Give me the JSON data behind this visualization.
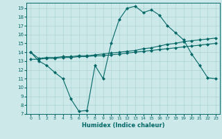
{
  "bg_color": "#cce8e8",
  "line_color": "#006666",
  "grid_color": "#aad4d4",
  "xlabel": "Humidex (Indice chaleur)",
  "xlim": [
    -0.5,
    23.5
  ],
  "ylim": [
    7,
    19.6
  ],
  "yticks": [
    7,
    8,
    9,
    10,
    11,
    12,
    13,
    14,
    15,
    16,
    17,
    18,
    19
  ],
  "xticks": [
    0,
    1,
    2,
    3,
    4,
    5,
    6,
    7,
    8,
    9,
    10,
    11,
    12,
    13,
    14,
    15,
    16,
    17,
    18,
    19,
    20,
    21,
    22,
    23
  ],
  "line1_x": [
    0,
    1,
    2,
    3,
    4,
    5,
    6,
    7,
    8,
    9,
    10,
    11,
    12,
    13,
    14,
    15,
    16,
    17,
    18,
    19,
    20,
    21,
    22,
    23
  ],
  "line1_y": [
    14.0,
    13.0,
    12.5,
    11.7,
    11.0,
    8.7,
    7.3,
    7.4,
    12.5,
    11.0,
    15.0,
    17.7,
    19.0,
    19.2,
    18.5,
    18.8,
    18.2,
    17.0,
    16.2,
    15.4,
    13.8,
    12.5,
    11.1,
    11.0
  ],
  "line2_x": [
    0,
    1,
    2,
    3,
    4,
    5,
    6,
    7,
    8,
    9,
    10,
    11,
    12,
    13,
    14,
    15,
    16,
    17,
    18,
    19,
    20,
    21,
    22,
    23
  ],
  "line2_y": [
    14.0,
    13.3,
    13.4,
    13.4,
    13.5,
    13.5,
    13.6,
    13.6,
    13.7,
    13.8,
    13.9,
    14.0,
    14.1,
    14.2,
    14.4,
    14.5,
    14.7,
    14.9,
    15.0,
    15.2,
    15.3,
    15.4,
    15.5,
    15.6
  ],
  "line3_x": [
    0,
    1,
    2,
    3,
    4,
    5,
    6,
    7,
    8,
    9,
    10,
    11,
    12,
    13,
    14,
    15,
    16,
    17,
    18,
    19,
    20,
    21,
    22,
    23
  ],
  "line3_y": [
    13.2,
    13.2,
    13.3,
    13.3,
    13.4,
    13.4,
    13.5,
    13.5,
    13.6,
    13.6,
    13.7,
    13.8,
    13.9,
    14.0,
    14.1,
    14.2,
    14.3,
    14.4,
    14.5,
    14.6,
    14.7,
    14.8,
    14.9,
    15.0
  ]
}
